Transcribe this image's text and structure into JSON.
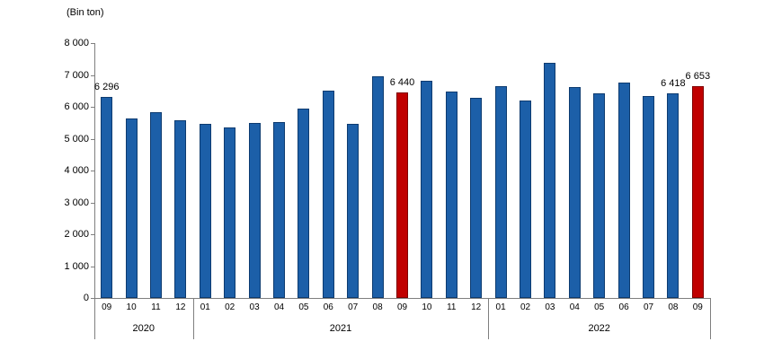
{
  "chart_data": {
    "type": "bar",
    "title": "",
    "ylabel": "(Bin ton)",
    "xlabel": "",
    "ylim": [
      0,
      8000
    ],
    "ytick_step": 1000,
    "grid": false,
    "legend": null,
    "bar_color": "#1c5fa8",
    "bar_border_color": "#0d3b70",
    "highlight_color": "#c00000",
    "highlight_border_color": "#7f0000",
    "categories_note": "months grouped by year on x-axis",
    "year_groups": [
      {
        "year": "2020",
        "months": [
          "09",
          "10",
          "11",
          "12"
        ]
      },
      {
        "year": "2021",
        "months": [
          "01",
          "02",
          "03",
          "04",
          "05",
          "06",
          "07",
          "08",
          "09",
          "10",
          "11",
          "12"
        ]
      },
      {
        "year": "2022",
        "months": [
          "01",
          "02",
          "03",
          "04",
          "05",
          "06",
          "07",
          "08",
          "09"
        ]
      }
    ],
    "points": [
      {
        "year": "2020",
        "month": "09",
        "value": 6296,
        "label": "6 296",
        "highlight": false
      },
      {
        "year": "2020",
        "month": "10",
        "value": 5640,
        "highlight": false
      },
      {
        "year": "2020",
        "month": "11",
        "value": 5840,
        "highlight": false
      },
      {
        "year": "2020",
        "month": "12",
        "value": 5590,
        "highlight": false
      },
      {
        "year": "2021",
        "month": "01",
        "value": 5470,
        "highlight": false
      },
      {
        "year": "2021",
        "month": "02",
        "value": 5360,
        "highlight": false
      },
      {
        "year": "2021",
        "month": "03",
        "value": 5500,
        "highlight": false
      },
      {
        "year": "2021",
        "month": "04",
        "value": 5530,
        "highlight": false
      },
      {
        "year": "2021",
        "month": "05",
        "value": 5950,
        "highlight": false
      },
      {
        "year": "2021",
        "month": "06",
        "value": 6520,
        "highlight": false
      },
      {
        "year": "2021",
        "month": "07",
        "value": 5470,
        "highlight": false
      },
      {
        "year": "2021",
        "month": "08",
        "value": 6950,
        "highlight": false
      },
      {
        "year": "2021",
        "month": "09",
        "value": 6440,
        "label": "6 440",
        "highlight": true
      },
      {
        "year": "2021",
        "month": "10",
        "value": 6830,
        "highlight": false
      },
      {
        "year": "2021",
        "month": "11",
        "value": 6490,
        "highlight": false
      },
      {
        "year": "2021",
        "month": "12",
        "value": 6290,
        "highlight": false
      },
      {
        "year": "2022",
        "month": "01",
        "value": 6660,
        "highlight": false
      },
      {
        "year": "2022",
        "month": "02",
        "value": 6210,
        "highlight": false
      },
      {
        "year": "2022",
        "month": "03",
        "value": 7370,
        "highlight": false
      },
      {
        "year": "2022",
        "month": "04",
        "value": 6610,
        "highlight": false
      },
      {
        "year": "2022",
        "month": "05",
        "value": 6410,
        "highlight": false
      },
      {
        "year": "2022",
        "month": "06",
        "value": 6750,
        "highlight": false
      },
      {
        "year": "2022",
        "month": "07",
        "value": 6350,
        "highlight": false
      },
      {
        "year": "2022",
        "month": "08",
        "value": 6418,
        "label": "6 418",
        "highlight": false
      },
      {
        "year": "2022",
        "month": "09",
        "value": 6653,
        "label": "6 653",
        "highlight": true
      }
    ]
  }
}
